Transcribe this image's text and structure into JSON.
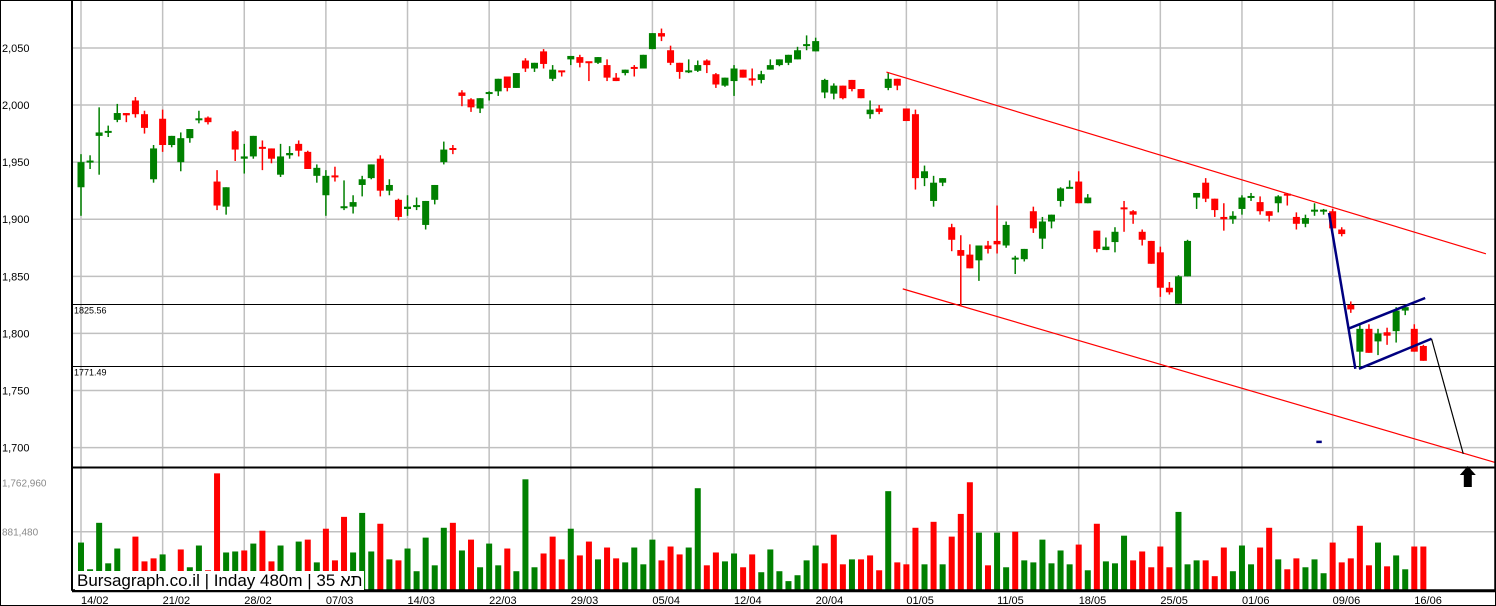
{
  "watermark": "Bursagraph.co.il | Inday 480m | 35 תא",
  "chart_data": {
    "type": "candlestick",
    "title": "",
    "colors": {
      "up": "#008000",
      "down": "#ff0000",
      "grid": "#c0c0c0",
      "trendline": "#ff0000",
      "pattern": "#000080",
      "level": "#000000"
    },
    "grid": true,
    "price_axis": {
      "ylim": [
        1683,
        2092
      ],
      "ticks": [
        {
          "value": 2050,
          "label": "2,050"
        },
        {
          "value": 2000,
          "label": "2,000"
        },
        {
          "value": 1950,
          "label": "1,950"
        },
        {
          "value": 1900,
          "label": "1,900"
        },
        {
          "value": 1850,
          "label": "1,850"
        },
        {
          "value": 1800,
          "label": "1,800"
        },
        {
          "value": 1750,
          "label": "1,750"
        },
        {
          "value": 1700,
          "label": "1,700"
        }
      ]
    },
    "volume_axis": {
      "ylim": [
        0,
        1833000
      ],
      "ticks": [
        {
          "value": 1762960,
          "label": "1,762,960"
        },
        {
          "value": 881480,
          "label": "881,480"
        }
      ]
    },
    "x_ticks": [
      {
        "label": "14/02",
        "bar": 0
      },
      {
        "label": "21/02",
        "bar": 9
      },
      {
        "label": "28/02",
        "bar": 18
      },
      {
        "label": "07/03",
        "bar": 27
      },
      {
        "label": "14/03",
        "bar": 36
      },
      {
        "label": "22/03",
        "bar": 45
      },
      {
        "label": "29/03",
        "bar": 54
      },
      {
        "label": "05/04",
        "bar": 63
      },
      {
        "label": "12/04",
        "bar": 72
      },
      {
        "label": "20/04",
        "bar": 81
      },
      {
        "label": "01/05",
        "bar": 91
      },
      {
        "label": "11/05",
        "bar": 101
      },
      {
        "label": "18/05",
        "bar": 110
      },
      {
        "label": "25/05",
        "bar": 119
      },
      {
        "label": "01/06",
        "bar": 128
      },
      {
        "label": "09/06",
        "bar": 138
      },
      {
        "label": "16/06",
        "bar": 147
      }
    ],
    "ohlc_fields": [
      "open",
      "high",
      "low",
      "close"
    ],
    "ohlc": [
      [
        1928,
        1957,
        1903,
        1950
      ],
      [
        1950,
        1956,
        1944,
        1951
      ],
      [
        1973,
        1998,
        1939,
        1976
      ],
      [
        1976,
        1982,
        1972,
        1977
      ],
      [
        1987,
        2001,
        1985,
        1993
      ],
      [
        1993,
        1993,
        1985,
        1991
      ],
      [
        2004,
        2007,
        1989,
        1992
      ],
      [
        1992,
        1995,
        1975,
        1980
      ],
      [
        1935,
        1965,
        1932,
        1962
      ],
      [
        1988,
        1996,
        1959,
        1965
      ],
      [
        1965,
        1973,
        1963,
        1973
      ],
      [
        1950,
        1976,
        1942,
        1971
      ],
      [
        1971,
        1979,
        1967,
        1979
      ],
      [
        1987,
        1995,
        1984,
        1988
      ],
      [
        1989,
        1990,
        1983,
        1985
      ],
      [
        1933,
        1943,
        1908,
        1912
      ],
      [
        1911,
        1928,
        1904,
        1928
      ],
      [
        1977,
        1978,
        1951,
        1961
      ],
      [
        1953,
        1966,
        1940,
        1955
      ],
      [
        1955,
        1973,
        1953,
        1973
      ],
      [
        1963,
        1969,
        1943,
        1962
      ],
      [
        1962,
        1962,
        1949,
        1953
      ],
      [
        1939,
        1966,
        1937,
        1955
      ],
      [
        1956,
        1964,
        1953,
        1958
      ],
      [
        1966,
        1969,
        1955,
        1960
      ],
      [
        1959,
        1960,
        1944,
        1944
      ],
      [
        1938,
        1948,
        1932,
        1945
      ],
      [
        1921,
        1943,
        1903,
        1938
      ],
      [
        1938,
        1946,
        1933,
        1937
      ],
      [
        1910,
        1934,
        1908,
        1911
      ],
      [
        1911,
        1921,
        1905,
        1915
      ],
      [
        1930,
        1938,
        1920,
        1935
      ],
      [
        1936,
        1948,
        1935,
        1948
      ],
      [
        1953,
        1956,
        1920,
        1925
      ],
      [
        1925,
        1935,
        1921,
        1930
      ],
      [
        1917,
        1918,
        1899,
        1902
      ],
      [
        1909,
        1921,
        1903,
        1911
      ],
      [
        1911,
        1919,
        1908,
        1912
      ],
      [
        1895,
        1916,
        1891,
        1916
      ],
      [
        1917,
        1930,
        1913,
        1930
      ],
      [
        1950,
        1968,
        1948,
        1961
      ],
      [
        1962,
        1965,
        1957,
        1961
      ],
      [
        2011,
        2013,
        1999,
        2008
      ],
      [
        2005,
        2006,
        1994,
        1998
      ],
      [
        1997,
        2006,
        1993,
        2006
      ],
      [
        2010,
        2012,
        2004,
        2011
      ],
      [
        2012,
        2023,
        2008,
        2023
      ],
      [
        2025,
        2025,
        2012,
        2015
      ],
      [
        2015,
        2028,
        2015,
        2028
      ],
      [
        2039,
        2041,
        2029,
        2032
      ],
      [
        2032,
        2037,
        2029,
        2037
      ],
      [
        2047,
        2049,
        2032,
        2036
      ],
      [
        2023,
        2035,
        2021,
        2031
      ],
      [
        2030,
        2030,
        2025,
        2029
      ],
      [
        2040,
        2043,
        2035,
        2043
      ],
      [
        2042,
        2044,
        2033,
        2037
      ],
      [
        2038,
        2038,
        2021,
        2037
      ],
      [
        2037,
        2042,
        2036,
        2042
      ],
      [
        2035,
        2040,
        2021,
        2024
      ],
      [
        2024,
        2028,
        2021,
        2021
      ],
      [
        2028,
        2031,
        2026,
        2031
      ],
      [
        2033,
        2035,
        2025,
        2032
      ],
      [
        2032,
        2044,
        2032,
        2044
      ],
      [
        2049,
        2063,
        2049,
        2063
      ],
      [
        2063,
        2067,
        2056,
        2060
      ],
      [
        2048,
        2052,
        2035,
        2037
      ],
      [
        2037,
        2037,
        2023,
        2029
      ],
      [
        2029,
        2040,
        2028,
        2030
      ],
      [
        2030,
        2039,
        2029,
        2035
      ],
      [
        2039,
        2040,
        2028,
        2035
      ],
      [
        2027,
        2028,
        2015,
        2018
      ],
      [
        2017,
        2024,
        2016,
        2024
      ],
      [
        2021,
        2035,
        2008,
        2032
      ],
      [
        2031,
        2031,
        2024,
        2024
      ],
      [
        2023,
        2032,
        2017,
        2022
      ],
      [
        2022,
        2030,
        2019,
        2027
      ],
      [
        2031,
        2040,
        2031,
        2035
      ],
      [
        2035,
        2040,
        2034,
        2040
      ],
      [
        2037,
        2044,
        2035,
        2044
      ],
      [
        2040,
        2051,
        2040,
        2048
      ],
      [
        2052,
        2061,
        2048,
        2053
      ],
      [
        2047,
        2059,
        2047,
        2056
      ],
      [
        2011,
        2023,
        2006,
        2022
      ],
      [
        2010,
        2019,
        2005,
        2017
      ],
      [
        2017,
        2017,
        2005,
        2006
      ],
      [
        2022,
        2022,
        2012,
        2014
      ],
      [
        2014,
        2014,
        2006,
        2006
      ],
      [
        1992,
        2004,
        1988,
        1996
      ],
      [
        1997,
        2000,
        1992,
        1994
      ],
      [
        2015,
        2028,
        2013,
        2023
      ],
      [
        2023,
        2023,
        2013,
        2017
      ],
      [
        1997,
        1997,
        1986,
        1986
      ],
      [
        1992,
        1996,
        1926,
        1936
      ],
      [
        1936,
        1947,
        1929,
        1942
      ],
      [
        1916,
        1938,
        1911,
        1932
      ],
      [
        1932,
        1936,
        1929,
        1936
      ],
      [
        1893,
        1896,
        1872,
        1882
      ],
      [
        1873,
        1886,
        1824,
        1868
      ],
      [
        1869,
        1878,
        1857,
        1857
      ],
      [
        1864,
        1877,
        1846,
        1877
      ],
      [
        1877,
        1881,
        1870,
        1874
      ],
      [
        1881,
        1912,
        1870,
        1878
      ],
      [
        1877,
        1898,
        1875,
        1895
      ],
      [
        1865,
        1868,
        1852,
        1866
      ],
      [
        1865,
        1874,
        1863,
        1874
      ],
      [
        1907,
        1911,
        1888,
        1892
      ],
      [
        1883,
        1902,
        1874,
        1898
      ],
      [
        1898,
        1904,
        1892,
        1904
      ],
      [
        1916,
        1928,
        1911,
        1927
      ],
      [
        1927,
        1934,
        1927,
        1928
      ],
      [
        1933,
        1942,
        1914,
        1914
      ],
      [
        1914,
        1922,
        1914,
        1919
      ],
      [
        1890,
        1890,
        1871,
        1874
      ],
      [
        1873,
        1884,
        1873,
        1876
      ],
      [
        1880,
        1893,
        1871,
        1889
      ],
      [
        1910,
        1916,
        1889,
        1909
      ],
      [
        1907,
        1908,
        1896,
        1904
      ],
      [
        1889,
        1891,
        1877,
        1882
      ],
      [
        1881,
        1881,
        1861,
        1861
      ],
      [
        1871,
        1876,
        1832,
        1840
      ],
      [
        1840,
        1845,
        1834,
        1836
      ],
      [
        1826,
        1851,
        1826,
        1850
      ],
      [
        1850,
        1882,
        1850,
        1881
      ],
      [
        1919,
        1923,
        1909,
        1923
      ],
      [
        1932,
        1936,
        1915,
        1918
      ],
      [
        1918,
        1918,
        1902,
        1908
      ],
      [
        1902,
        1914,
        1890,
        1900
      ],
      [
        1900,
        1907,
        1896,
        1903
      ],
      [
        1909,
        1921,
        1904,
        1919
      ],
      [
        1919,
        1923,
        1916,
        1920
      ],
      [
        1915,
        1920,
        1904,
        1907
      ],
      [
        1907,
        1907,
        1898,
        1903
      ],
      [
        1914,
        1921,
        1906,
        1920
      ],
      [
        1922,
        1923,
        1912,
        1921
      ],
      [
        1902,
        1906,
        1891,
        1896
      ],
      [
        1896,
        1904,
        1893,
        1901
      ],
      [
        1907,
        1914,
        1903,
        1908
      ],
      [
        1907,
        1909,
        1904,
        1908
      ],
      [
        1907,
        1909,
        1892,
        1892
      ],
      [
        1891,
        1893,
        1885,
        1887
      ],
      [
        1825,
        1828,
        1818,
        1821
      ],
      [
        1784,
        1809,
        1769,
        1804
      ],
      [
        1804,
        1808,
        1783,
        1783
      ],
      [
        1793,
        1804,
        1781,
        1800
      ],
      [
        1801,
        1805,
        1790,
        1798
      ],
      [
        1802,
        1823,
        1792,
        1820
      ],
      [
        1820,
        1825,
        1816,
        1823
      ],
      [
        1804,
        1808,
        1784,
        1784
      ],
      [
        1789,
        1790,
        1776,
        1776
      ]
    ],
    "volume": [
      719000,
      320000,
      1014000,
      409000,
      630000,
      291000,
      808000,
      438000,
      483000,
      542000,
      200000,
      616000,
      350000,
      675000,
      305000,
      1753000,
      571000,
      586000,
      601000,
      704000,
      896000,
      438000,
      675000,
      291000,
      734000,
      763000,
      423000,
      926000,
      453000,
      1103000,
      571000,
      1162000,
      586000,
      1000000,
      468000,
      453000,
      630000,
      291000,
      793000,
      379000,
      940000,
      1014000,
      601000,
      763000,
      350000,
      704000,
      379000,
      630000,
      291000,
      1664000,
      350000,
      556000,
      808000,
      468000,
      926000,
      527000,
      734000,
      468000,
      645000,
      483000,
      423000,
      645000,
      394000,
      763000,
      453000,
      660000,
      542000,
      645000,
      1531000,
      379000,
      571000,
      438000,
      556000,
      350000,
      542000,
      276000,
      616000,
      291000,
      143000,
      231000,
      453000,
      675000,
      409000,
      837000,
      394000,
      468000,
      468000,
      527000,
      305000,
      1487000,
      423000,
      394000,
      940000,
      394000,
      1029000,
      394000,
      808000,
      1147000,
      1620000,
      867000,
      379000,
      867000,
      350000,
      881000,
      453000,
      423000,
      763000,
      409000,
      601000,
      394000,
      689000,
      305000,
      1000000,
      438000,
      409000,
      822000,
      453000,
      586000,
      350000,
      660000,
      350000,
      1177000,
      394000,
      453000,
      453000,
      217000,
      645000,
      291000,
      675000,
      394000,
      645000,
      940000,
      468000,
      320000,
      483000,
      350000,
      468000,
      261000,
      719000,
      423000,
      483000,
      970000,
      379000,
      719000,
      364000,
      527000,
      320000,
      660000,
      660000
    ],
    "volume_colors": "gggggrrrrggrggrrggrgrrgggrgrrrgggrgrgggggrgrgggrgggrrrgrrgrrggggrrrggrrggrrgggggggrrrgrrrgrrrgrgrrrgrggrggggggrgrgggrrrrrgggrrrgggrrgrrgggrrrrrgrggrr",
    "horizontal_levels": [
      {
        "value": 1825.56,
        "label": "1825.56"
      },
      {
        "value": 1771.49,
        "label": "1771.49"
      }
    ],
    "trendlines": [
      {
        "color": "trendline",
        "points": [
          [
            88.8,
            2028.9
          ],
          [
            154.9,
            1869.7
          ]
        ]
      },
      {
        "color": "trendline",
        "points": [
          [
            90.6,
            1839
          ],
          [
            155.9,
            1687
          ]
        ]
      },
      {
        "color": "pattern",
        "points": [
          [
            137.6,
            1905.5
          ],
          [
            140.5,
            1769
          ]
        ]
      },
      {
        "color": "pattern",
        "points": [
          [
            139.7,
            1804
          ],
          [
            148.2,
            1831
          ]
        ]
      },
      {
        "color": "pattern",
        "points": [
          [
            140.9,
            1769
          ],
          [
            148.9,
            1795.3
          ]
        ]
      },
      {
        "color": "pattern",
        "points": [
          [
            136.2,
            1705
          ],
          [
            136.8,
            1705
          ]
        ]
      },
      {
        "color": "level",
        "points": [
          [
            148.9,
            1795.3
          ],
          [
            152.4,
            1694.5
          ]
        ]
      }
    ],
    "marker": {
      "type": "up-arrow",
      "bar": 152.9
    }
  }
}
